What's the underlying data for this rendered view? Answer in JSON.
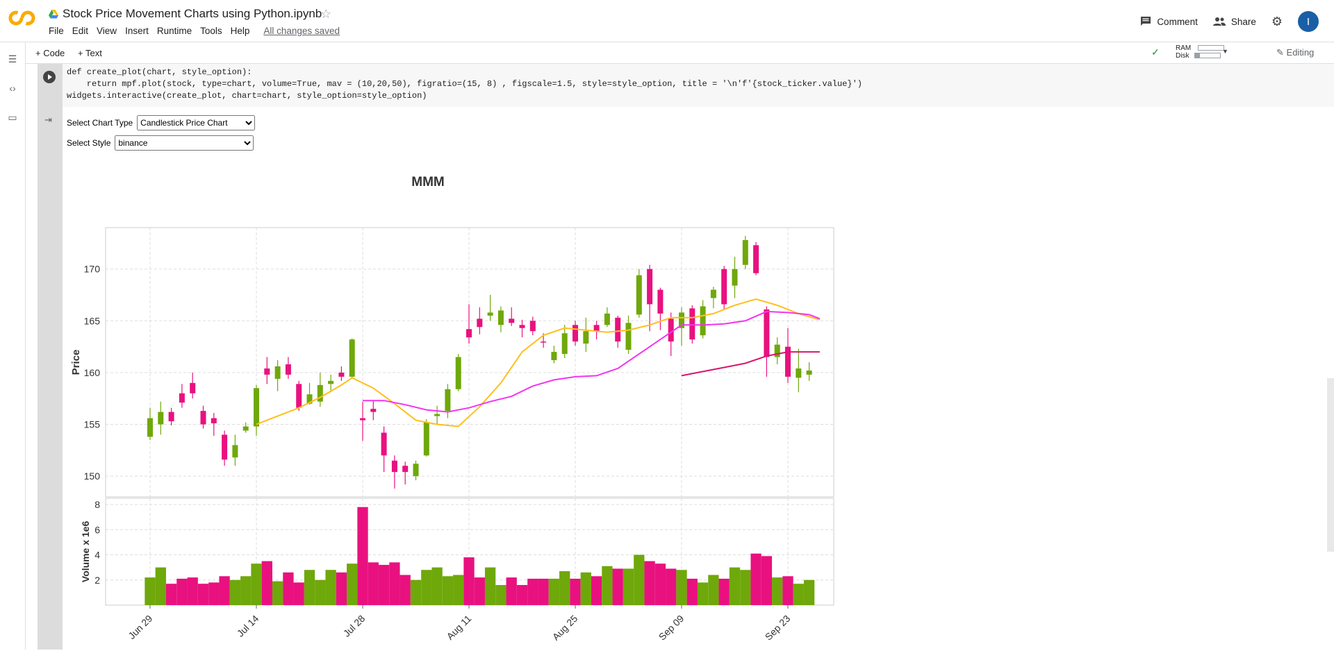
{
  "app": {
    "notebook_title": "Stock Price Movement Charts using Python.ipynb",
    "menus": [
      "File",
      "Edit",
      "View",
      "Insert",
      "Runtime",
      "Tools",
      "Help"
    ],
    "saved_status": "All changes saved",
    "comment_label": "Comment",
    "share_label": "Share",
    "avatar_letter": "I"
  },
  "toolbar": {
    "code_label": "+ Code",
    "text_label": "+ Text",
    "ram_label": "RAM",
    "disk_label": "Disk",
    "editing_label": "Editing"
  },
  "cell": {
    "code_line1": "def create_plot(chart, style_option):",
    "code_line2": "    return mpf.plot(stock, type=chart, volume=True, mav = (10,20,50), figratio=(15, 8) , figscale=1.5, style=style_option, title = '\\n'f'{stock_ticker.value}')",
    "code_line3": "widgets.interactive(create_plot, chart=chart, style_option=style_option)"
  },
  "widgets": {
    "chart_type_label": "Select Chart Type",
    "chart_type_value": "Candlestick Price Chart",
    "style_label": "Select Style",
    "style_value": "binance"
  },
  "chart_data": {
    "type": "candlestick",
    "title": "MMM",
    "ylabel": "Price",
    "volume_label": "Volume x 1e6",
    "ylim": [
      148,
      174
    ],
    "vol_ylim": [
      0,
      8.5
    ],
    "yticks": [
      150,
      155,
      160,
      165,
      170
    ],
    "vol_yticks": [
      2,
      4,
      6,
      8
    ],
    "xtick_labels": [
      "Jun 29",
      "Jul 14",
      "Jul 28",
      "Aug 11",
      "Aug 25",
      "Sep 09",
      "Sep 23"
    ],
    "xtick_index": [
      0,
      10,
      20,
      30,
      40,
      50,
      60
    ],
    "colors": {
      "up": "#6fa80a",
      "down": "#e8117f",
      "mav10": "#ffbf1a",
      "mav20": "#f333f0",
      "mav50": "#d6176e"
    },
    "candles": [
      {
        "o": 153.8,
        "c": 155.6,
        "h": 156.6,
        "l": 153.5,
        "v": 2.2
      },
      {
        "o": 155.0,
        "c": 156.2,
        "h": 157.2,
        "l": 154.0,
        "v": 3.0
      },
      {
        "o": 156.2,
        "c": 155.3,
        "h": 156.6,
        "l": 154.9,
        "v": 1.7
      },
      {
        "o": 158.0,
        "c": 157.1,
        "h": 158.9,
        "l": 156.6,
        "v": 2.1
      },
      {
        "o": 159.0,
        "c": 158.0,
        "h": 160.0,
        "l": 157.5,
        "v": 2.2
      },
      {
        "o": 156.3,
        "c": 155.0,
        "h": 156.8,
        "l": 154.6,
        "v": 1.7
      },
      {
        "o": 155.6,
        "c": 155.1,
        "h": 156.1,
        "l": 153.9,
        "v": 1.8
      },
      {
        "o": 154.0,
        "c": 151.6,
        "h": 154.4,
        "l": 151.0,
        "v": 2.3
      },
      {
        "o": 151.8,
        "c": 153.0,
        "h": 154.0,
        "l": 151.0,
        "v": 2.0
      },
      {
        "o": 154.4,
        "c": 154.8,
        "h": 155.2,
        "l": 154.2,
        "v": 2.3
      },
      {
        "o": 154.8,
        "c": 158.5,
        "h": 158.8,
        "l": 153.9,
        "v": 3.3
      },
      {
        "o": 160.4,
        "c": 159.8,
        "h": 161.5,
        "l": 158.9,
        "v": 3.5
      },
      {
        "o": 159.4,
        "c": 160.6,
        "h": 161.2,
        "l": 158.2,
        "v": 1.9
      },
      {
        "o": 160.8,
        "c": 159.8,
        "h": 161.5,
        "l": 159.4,
        "v": 2.6
      },
      {
        "o": 158.9,
        "c": 156.6,
        "h": 159.2,
        "l": 156.3,
        "v": 1.8
      },
      {
        "o": 157.0,
        "c": 157.9,
        "h": 159.0,
        "l": 156.9,
        "v": 2.8
      },
      {
        "o": 157.2,
        "c": 158.8,
        "h": 160.0,
        "l": 156.7,
        "v": 2.0
      },
      {
        "o": 158.9,
        "c": 159.2,
        "h": 159.8,
        "l": 158.1,
        "v": 2.8
      },
      {
        "o": 160.0,
        "c": 159.6,
        "h": 160.6,
        "l": 159.2,
        "v": 2.6
      },
      {
        "o": 159.6,
        "c": 163.2,
        "h": 163.3,
        "l": 159.4,
        "v": 3.3
      },
      {
        "o": 155.6,
        "c": 155.4,
        "h": 157.2,
        "l": 153.4,
        "v": 7.8
      },
      {
        "o": 156.5,
        "c": 156.2,
        "h": 157.3,
        "l": 155.4,
        "v": 3.4
      },
      {
        "o": 154.2,
        "c": 152.0,
        "h": 154.8,
        "l": 150.4,
        "v": 3.2
      },
      {
        "o": 151.5,
        "c": 150.4,
        "h": 152.0,
        "l": 148.8,
        "v": 3.4
      },
      {
        "o": 151.0,
        "c": 150.4,
        "h": 151.4,
        "l": 149.2,
        "v": 2.4
      },
      {
        "o": 150.0,
        "c": 151.2,
        "h": 151.5,
        "l": 149.6,
        "v": 2.0
      },
      {
        "o": 152.0,
        "c": 155.2,
        "h": 155.5,
        "l": 151.9,
        "v": 2.8
      },
      {
        "o": 155.8,
        "c": 156.0,
        "h": 156.8,
        "l": 155.0,
        "v": 3.0
      },
      {
        "o": 156.3,
        "c": 158.4,
        "h": 158.9,
        "l": 155.6,
        "v": 2.3
      },
      {
        "o": 158.4,
        "c": 161.5,
        "h": 161.8,
        "l": 158.2,
        "v": 2.4
      },
      {
        "o": 164.2,
        "c": 163.4,
        "h": 166.6,
        "l": 162.8,
        "v": 3.8
      },
      {
        "o": 165.2,
        "c": 164.4,
        "h": 166.3,
        "l": 163.7,
        "v": 2.2
      },
      {
        "o": 165.5,
        "c": 165.8,
        "h": 167.5,
        "l": 165.0,
        "v": 3.0
      },
      {
        "o": 164.6,
        "c": 166.0,
        "h": 166.4,
        "l": 163.9,
        "v": 1.6
      },
      {
        "o": 165.2,
        "c": 164.8,
        "h": 166.3,
        "l": 164.5,
        "v": 2.2
      },
      {
        "o": 164.6,
        "c": 164.3,
        "h": 165.1,
        "l": 163.4,
        "v": 1.6
      },
      {
        "o": 165.0,
        "c": 164.0,
        "h": 165.4,
        "l": 163.6,
        "v": 2.1
      },
      {
        "o": 163.0,
        "c": 162.9,
        "h": 163.8,
        "l": 162.4,
        "v": 2.1
      },
      {
        "o": 161.2,
        "c": 162.0,
        "h": 162.6,
        "l": 160.9,
        "v": 2.1
      },
      {
        "o": 161.8,
        "c": 163.8,
        "h": 164.6,
        "l": 161.4,
        "v": 2.7
      },
      {
        "o": 164.6,
        "c": 163.0,
        "h": 165.0,
        "l": 162.6,
        "v": 2.1
      },
      {
        "o": 162.8,
        "c": 164.0,
        "h": 165.3,
        "l": 162.0,
        "v": 2.6
      },
      {
        "o": 164.6,
        "c": 164.0,
        "h": 165.0,
        "l": 163.2,
        "v": 2.3
      },
      {
        "o": 164.6,
        "c": 165.7,
        "h": 166.3,
        "l": 164.4,
        "v": 3.1
      },
      {
        "o": 165.3,
        "c": 163.0,
        "h": 165.5,
        "l": 162.4,
        "v": 2.9
      },
      {
        "o": 162.2,
        "c": 164.8,
        "h": 165.5,
        "l": 161.8,
        "v": 2.9
      },
      {
        "o": 165.6,
        "c": 169.4,
        "h": 170.0,
        "l": 165.3,
        "v": 4.0
      },
      {
        "o": 170.0,
        "c": 166.6,
        "h": 170.4,
        "l": 164.0,
        "v": 3.5
      },
      {
        "o": 168.0,
        "c": 165.7,
        "h": 168.2,
        "l": 164.1,
        "v": 3.3
      },
      {
        "o": 165.2,
        "c": 163.0,
        "h": 165.8,
        "l": 161.6,
        "v": 2.9
      },
      {
        "o": 164.3,
        "c": 165.8,
        "h": 166.3,
        "l": 162.6,
        "v": 2.8
      },
      {
        "o": 166.2,
        "c": 163.2,
        "h": 166.5,
        "l": 162.8,
        "v": 2.1
      },
      {
        "o": 163.6,
        "c": 166.4,
        "h": 167.0,
        "l": 163.3,
        "v": 1.8
      },
      {
        "o": 167.2,
        "c": 168.0,
        "h": 168.3,
        "l": 166.2,
        "v": 2.4
      },
      {
        "o": 170.0,
        "c": 166.6,
        "h": 170.3,
        "l": 166.1,
        "v": 2.1
      },
      {
        "o": 168.4,
        "c": 170.0,
        "h": 171.2,
        "l": 167.2,
        "v": 3.0
      },
      {
        "o": 170.4,
        "c": 172.8,
        "h": 173.2,
        "l": 170.0,
        "v": 2.8
      },
      {
        "o": 172.3,
        "c": 169.6,
        "h": 172.6,
        "l": 169.4,
        "v": 4.1
      },
      {
        "o": 166.1,
        "c": 161.5,
        "h": 166.4,
        "l": 159.6,
        "v": 3.9
      },
      {
        "o": 161.5,
        "c": 162.7,
        "h": 163.4,
        "l": 160.8,
        "v": 2.2
      },
      {
        "o": 162.5,
        "c": 159.6,
        "h": 164.3,
        "l": 159.0,
        "v": 2.3
      },
      {
        "o": 159.5,
        "c": 160.4,
        "h": 162.3,
        "l": 158.1,
        "v": 1.7
      },
      {
        "o": 159.8,
        "c": 160.2,
        "h": 161.0,
        "l": 159.2,
        "v": 2.0
      }
    ],
    "mav10": [
      [
        10,
        155.0
      ],
      [
        12,
        155.8
      ],
      [
        14,
        156.6
      ],
      [
        16,
        157.6
      ],
      [
        18,
        158.8
      ],
      [
        19,
        159.5
      ],
      [
        21,
        158.5
      ],
      [
        23,
        157.0
      ],
      [
        25,
        155.4
      ],
      [
        27,
        155.0
      ],
      [
        29,
        154.8
      ],
      [
        31,
        156.7
      ],
      [
        33,
        159.0
      ],
      [
        35,
        162.0
      ],
      [
        37,
        163.6
      ],
      [
        39,
        164.3
      ],
      [
        41,
        164.1
      ],
      [
        43,
        163.9
      ],
      [
        45,
        164.1
      ],
      [
        47,
        164.6
      ],
      [
        49,
        165.3
      ],
      [
        51,
        165.3
      ],
      [
        53,
        165.7
      ],
      [
        55,
        166.5
      ],
      [
        57,
        167.1
      ],
      [
        59,
        166.5
      ],
      [
        61,
        165.7
      ],
      [
        63,
        165.1
      ]
    ],
    "mav20": [
      [
        20,
        157.3
      ],
      [
        22,
        157.3
      ],
      [
        24,
        156.9
      ],
      [
        26,
        156.4
      ],
      [
        28,
        156.2
      ],
      [
        30,
        156.6
      ],
      [
        32,
        157.2
      ],
      [
        34,
        157.7
      ],
      [
        36,
        158.7
      ],
      [
        38,
        159.3
      ],
      [
        40,
        159.6
      ],
      [
        42,
        159.7
      ],
      [
        44,
        160.4
      ],
      [
        46,
        161.8
      ],
      [
        48,
        163.2
      ],
      [
        50,
        164.6
      ],
      [
        52,
        164.6
      ],
      [
        54,
        164.7
      ],
      [
        56,
        165.0
      ],
      [
        58,
        165.9
      ],
      [
        60,
        165.8
      ],
      [
        62,
        165.6
      ],
      [
        63,
        165.2
      ]
    ],
    "mav50": [
      [
        50,
        159.7
      ],
      [
        52,
        160.1
      ],
      [
        54,
        160.5
      ],
      [
        56,
        160.9
      ],
      [
        58,
        161.6
      ],
      [
        60,
        162.0
      ],
      [
        63,
        162.0
      ]
    ]
  }
}
